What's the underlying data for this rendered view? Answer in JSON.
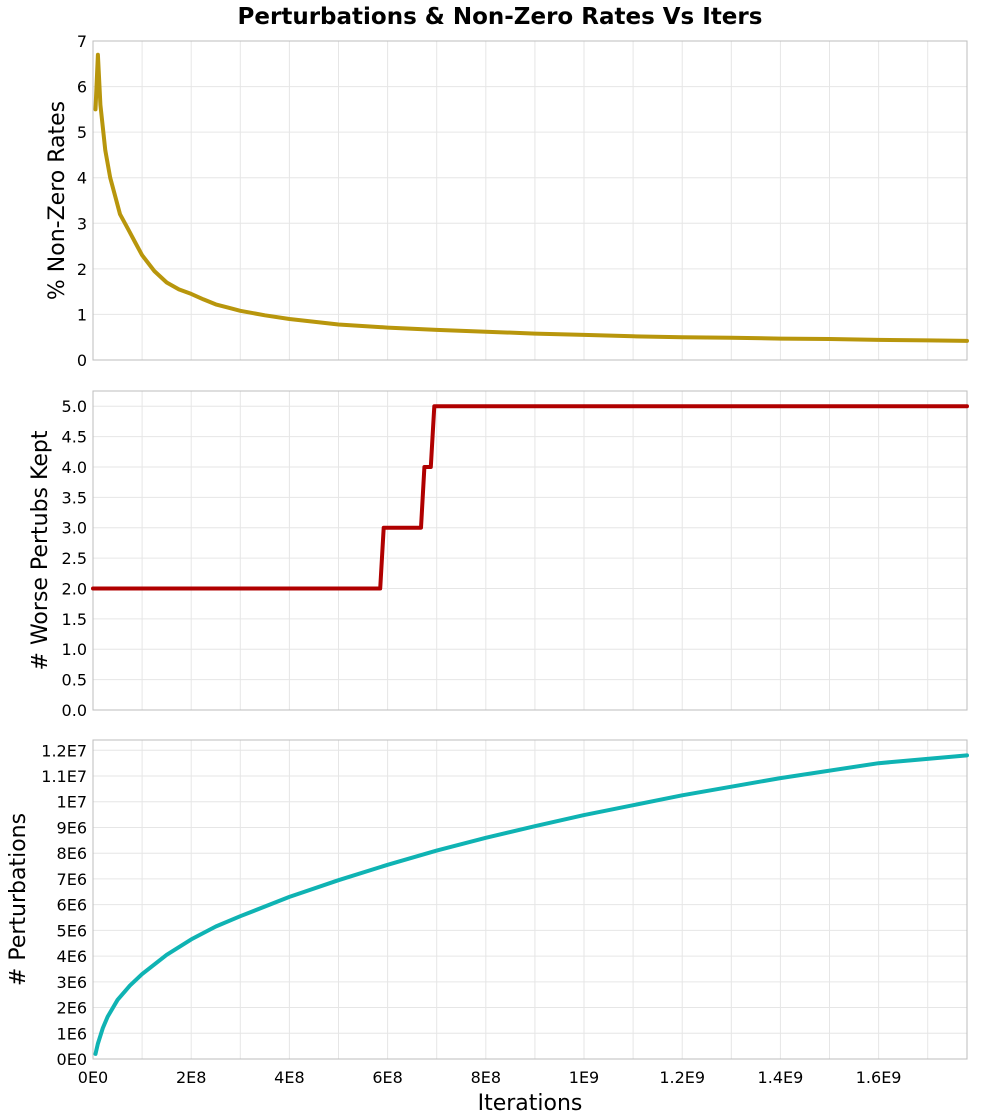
{
  "title": "Perturbations & Non-Zero Rates Vs Iters",
  "x_axis": {
    "label": "Iterations",
    "range": [
      0,
      1780000000
    ],
    "ticks": [
      {
        "value": 0,
        "label": "0E0"
      },
      {
        "value": 200000000,
        "label": "2E8"
      },
      {
        "value": 400000000,
        "label": "4E8"
      },
      {
        "value": 600000000,
        "label": "6E8"
      },
      {
        "value": 800000000,
        "label": "8E8"
      },
      {
        "value": 1000000000,
        "label": "1E9"
      },
      {
        "value": 1200000000,
        "label": "1.2E9"
      },
      {
        "value": 1400000000,
        "label": "1.4E9"
      },
      {
        "value": 1600000000,
        "label": "1.6E9"
      }
    ]
  },
  "chart_data": [
    {
      "type": "line",
      "ylabel": "% Non-Zero Rates",
      "ylim": [
        0,
        7
      ],
      "grid": true,
      "color": "#b8960c",
      "yticks": [
        {
          "value": 0,
          "label": "0"
        },
        {
          "value": 1,
          "label": "1"
        },
        {
          "value": 2,
          "label": "2"
        },
        {
          "value": 3,
          "label": "3"
        },
        {
          "value": 4,
          "label": "4"
        },
        {
          "value": 5,
          "label": "5"
        },
        {
          "value": 6,
          "label": "6"
        },
        {
          "value": 7,
          "label": "7"
        }
      ],
      "x": [
        5000000,
        10000000,
        15000000,
        25000000,
        35000000,
        45000000,
        55000000,
        70000000,
        85000000,
        100000000,
        125000000,
        150000000,
        175000000,
        200000000,
        225000000,
        250000000,
        275000000,
        300000000,
        350000000,
        400000000,
        450000000,
        500000000,
        600000000,
        700000000,
        800000000,
        900000000,
        1000000000,
        1100000000,
        1200000000,
        1300000000,
        1400000000,
        1500000000,
        1600000000,
        1700000000,
        1780000000
      ],
      "values": [
        5.5,
        6.7,
        5.6,
        4.6,
        4.0,
        3.6,
        3.2,
        2.9,
        2.6,
        2.3,
        1.95,
        1.7,
        1.55,
        1.45,
        1.33,
        1.22,
        1.15,
        1.08,
        0.98,
        0.9,
        0.84,
        0.78,
        0.71,
        0.66,
        0.62,
        0.58,
        0.55,
        0.52,
        0.5,
        0.49,
        0.47,
        0.46,
        0.44,
        0.43,
        0.42
      ]
    },
    {
      "type": "line",
      "ylabel": "# Worse Pertubs Kept",
      "ylim": [
        0,
        5.25
      ],
      "grid": true,
      "color": "#b00000",
      "yticks": [
        {
          "value": 0,
          "label": "0.0"
        },
        {
          "value": 0.5,
          "label": "0.5"
        },
        {
          "value": 1,
          "label": "1.0"
        },
        {
          "value": 1.5,
          "label": "1.5"
        },
        {
          "value": 2,
          "label": "2.0"
        },
        {
          "value": 2.5,
          "label": "2.5"
        },
        {
          "value": 3,
          "label": "3.0"
        },
        {
          "value": 3.5,
          "label": "3.5"
        },
        {
          "value": 4,
          "label": "4.0"
        },
        {
          "value": 4.5,
          "label": "4.5"
        },
        {
          "value": 5,
          "label": "5.0"
        }
      ],
      "x": [
        0,
        585000000,
        592000000,
        668000000,
        675000000,
        688000000,
        695000000,
        1780000000
      ],
      "values": [
        2,
        2,
        3,
        3,
        4,
        4,
        5,
        5
      ]
    },
    {
      "type": "line",
      "ylabel": "# Perturbations",
      "ylim": [
        0,
        12400000
      ],
      "grid": true,
      "color": "#0fb3b3",
      "yticks": [
        {
          "value": 0,
          "label": "0E0"
        },
        {
          "value": 1000000,
          "label": "1E6"
        },
        {
          "value": 2000000,
          "label": "2E6"
        },
        {
          "value": 3000000,
          "label": "3E6"
        },
        {
          "value": 4000000,
          "label": "4E6"
        },
        {
          "value": 5000000,
          "label": "5E6"
        },
        {
          "value": 6000000,
          "label": "6E6"
        },
        {
          "value": 7000000,
          "label": "7E6"
        },
        {
          "value": 8000000,
          "label": "8E6"
        },
        {
          "value": 9000000,
          "label": "9E6"
        },
        {
          "value": 10000000,
          "label": "1E7"
        },
        {
          "value": 11000000,
          "label": "1.1E7"
        },
        {
          "value": 12000000,
          "label": "1.2E7"
        }
      ],
      "x": [
        5000000,
        10000000,
        20000000,
        30000000,
        50000000,
        75000000,
        100000000,
        150000000,
        200000000,
        250000000,
        300000000,
        400000000,
        500000000,
        600000000,
        700000000,
        800000000,
        900000000,
        1000000000,
        1200000000,
        1400000000,
        1600000000,
        1780000000
      ],
      "values": [
        200000,
        600000,
        1200000,
        1650000,
        2300000,
        2850000,
        3300000,
        4050000,
        4650000,
        5150000,
        5550000,
        6300000,
        6950000,
        7550000,
        8100000,
        8600000,
        9050000,
        9480000,
        10250000,
        10920000,
        11500000,
        11800000
      ]
    }
  ]
}
